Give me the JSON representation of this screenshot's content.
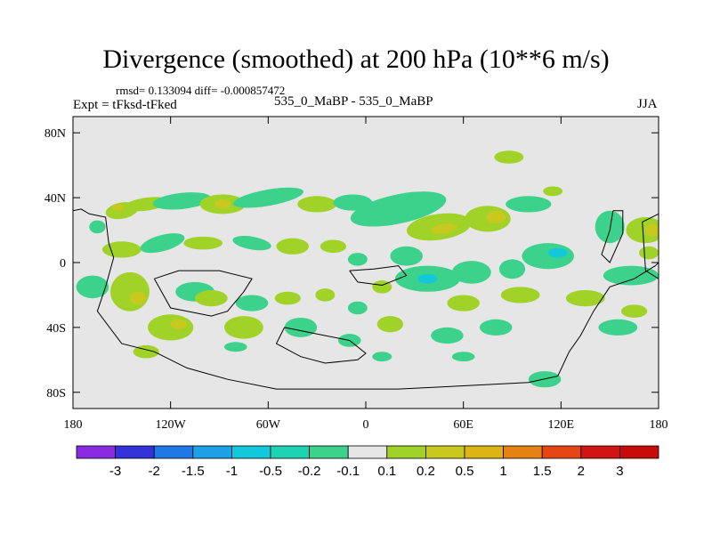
{
  "header": {
    "title": "Divergence (smoothed) at 200 hPa (10**6 m/s)",
    "stats": "rmsd= 0.133094 diff= -0.000857472",
    "expt": "Expt = tFksd-tFked",
    "case": "535_0_MaBP - 535_0_MaBP",
    "season": "JJA"
  },
  "colors": {
    "background": "#e6e6e6",
    "frame": "#000000"
  },
  "chart_data": {
    "type": "heatmap",
    "title": "Divergence (smoothed) at 200 hPa (10**6 m/s)",
    "xlim": [
      -180,
      180
    ],
    "ylim": [
      -90,
      90
    ],
    "xticks": [
      {
        "value": -180,
        "label": "180"
      },
      {
        "value": -120,
        "label": "120W"
      },
      {
        "value": -60,
        "label": "60W"
      },
      {
        "value": 0,
        "label": "0"
      },
      {
        "value": 60,
        "label": "60E"
      },
      {
        "value": 120,
        "label": "120E"
      },
      {
        "value": 180,
        "label": "180"
      }
    ],
    "yticks": [
      {
        "value": 80,
        "label": "80N"
      },
      {
        "value": 40,
        "label": "40N"
      },
      {
        "value": 0,
        "label": "0"
      },
      {
        "value": -40,
        "label": "40S"
      },
      {
        "value": -80,
        "label": "80S"
      }
    ],
    "levels": [
      "-3",
      "-2",
      "-1.5",
      "-1",
      "-0.5",
      "-0.2",
      "-0.1",
      "0.1",
      "0.2",
      "0.5",
      "1",
      "1.5",
      "2",
      "3"
    ],
    "colorbar": [
      "#8a2be2",
      "#3232d8",
      "#1e78e6",
      "#1ea0e6",
      "#14c8dc",
      "#1ed2b4",
      "#3cd28c",
      "#e6e6e6",
      "#a0d228",
      "#c8c81e",
      "#dcb414",
      "#e68214",
      "#e64614",
      "#d21414",
      "#c80a0a"
    ],
    "blobs": [
      {
        "lon": -150,
        "lat": 32,
        "rx": 10,
        "ry": 5,
        "rot": -10,
        "color": "#a0d228"
      },
      {
        "lon": -152,
        "lat": 34,
        "rx": 4,
        "ry": 2,
        "rot": 0,
        "color": "#c8c81e"
      },
      {
        "lon": -165,
        "lat": 22,
        "rx": 5,
        "ry": 4,
        "rot": 0,
        "color": "#3cd28c"
      },
      {
        "lon": -135,
        "lat": 36,
        "rx": 14,
        "ry": 4,
        "rot": -8,
        "color": "#a0d228"
      },
      {
        "lon": -113,
        "lat": 38,
        "rx": 18,
        "ry": 5,
        "rot": -6,
        "color": "#3cd28c"
      },
      {
        "lon": -88,
        "lat": 36,
        "rx": 14,
        "ry": 6,
        "rot": 0,
        "color": "#a0d228"
      },
      {
        "lon": -88,
        "lat": 36,
        "rx": 5,
        "ry": 3,
        "rot": 0,
        "color": "#c8c81e"
      },
      {
        "lon": -60,
        "lat": 40,
        "rx": 22,
        "ry": 5,
        "rot": -10,
        "color": "#3cd28c"
      },
      {
        "lon": -30,
        "lat": 36,
        "rx": 12,
        "ry": 5,
        "rot": 0,
        "color": "#a0d228"
      },
      {
        "lon": -8,
        "lat": 37,
        "rx": 12,
        "ry": 5,
        "rot": 0,
        "color": "#3cd28c"
      },
      {
        "lon": 20,
        "lat": 33,
        "rx": 30,
        "ry": 9,
        "rot": -12,
        "color": "#3cd28c"
      },
      {
        "lon": 45,
        "lat": 22,
        "rx": 20,
        "ry": 8,
        "rot": -8,
        "color": "#a0d228"
      },
      {
        "lon": 48,
        "lat": 21,
        "rx": 8,
        "ry": 3,
        "rot": -8,
        "color": "#c8c81e"
      },
      {
        "lon": 75,
        "lat": 27,
        "rx": 14,
        "ry": 8,
        "rot": 0,
        "color": "#a0d228"
      },
      {
        "lon": 80,
        "lat": 28,
        "rx": 6,
        "ry": 4,
        "rot": 0,
        "color": "#c8c81e"
      },
      {
        "lon": 100,
        "lat": 36,
        "rx": 14,
        "ry": 5,
        "rot": 0,
        "color": "#3cd28c"
      },
      {
        "lon": 88,
        "lat": 65,
        "rx": 9,
        "ry": 4,
        "rot": 0,
        "color": "#a0d228"
      },
      {
        "lon": 115,
        "lat": 44,
        "rx": 6,
        "ry": 3,
        "rot": 0,
        "color": "#a0d228"
      },
      {
        "lon": 150,
        "lat": 22,
        "rx": 9,
        "ry": 10,
        "rot": 0,
        "color": "#3cd28c"
      },
      {
        "lon": 172,
        "lat": 20,
        "rx": 12,
        "ry": 8,
        "rot": 0,
        "color": "#a0d228"
      },
      {
        "lon": 176,
        "lat": 20,
        "rx": 4,
        "ry": 4,
        "rot": 0,
        "color": "#c8c81e"
      },
      {
        "lon": -150,
        "lat": 8,
        "rx": 12,
        "ry": 5,
        "rot": 0,
        "color": "#a0d228"
      },
      {
        "lon": -125,
        "lat": 12,
        "rx": 14,
        "ry": 5,
        "rot": -15,
        "color": "#3cd28c"
      },
      {
        "lon": -100,
        "lat": 12,
        "rx": 12,
        "ry": 4,
        "rot": 0,
        "color": "#a0d228"
      },
      {
        "lon": -70,
        "lat": 12,
        "rx": 12,
        "ry": 4,
        "rot": 10,
        "color": "#3cd28c"
      },
      {
        "lon": -45,
        "lat": 10,
        "rx": 10,
        "ry": 5,
        "rot": 0,
        "color": "#a0d228"
      },
      {
        "lon": -20,
        "lat": 10,
        "rx": 8,
        "ry": 4,
        "rot": 0,
        "color": "#a0d228"
      },
      {
        "lon": -5,
        "lat": 2,
        "rx": 6,
        "ry": 4,
        "rot": 0,
        "color": "#3cd28c"
      },
      {
        "lon": 25,
        "lat": 4,
        "rx": 10,
        "ry": 6,
        "rot": 0,
        "color": "#3cd28c"
      },
      {
        "lon": 38,
        "lat": -10,
        "rx": 20,
        "ry": 8,
        "rot": 0,
        "color": "#3cd28c"
      },
      {
        "lon": 38,
        "lat": -10,
        "rx": 6,
        "ry": 3,
        "rot": 0,
        "color": "#14c8dc"
      },
      {
        "lon": 65,
        "lat": -6,
        "rx": 12,
        "ry": 7,
        "rot": 0,
        "color": "#3cd28c"
      },
      {
        "lon": 90,
        "lat": -4,
        "rx": 8,
        "ry": 6,
        "rot": 0,
        "color": "#3cd28c"
      },
      {
        "lon": 112,
        "lat": 4,
        "rx": 16,
        "ry": 8,
        "rot": 0,
        "color": "#3cd28c"
      },
      {
        "lon": 118,
        "lat": 6,
        "rx": 6,
        "ry": 3,
        "rot": 0,
        "color": "#14c8dc"
      },
      {
        "lon": 163,
        "lat": -8,
        "rx": 17,
        "ry": 6,
        "rot": 0,
        "color": "#3cd28c"
      },
      {
        "lon": 174,
        "lat": 6,
        "rx": 6,
        "ry": 4,
        "rot": 0,
        "color": "#a0d228"
      },
      {
        "lon": -168,
        "lat": -15,
        "rx": 10,
        "ry": 7,
        "rot": 0,
        "color": "#3cd28c"
      },
      {
        "lon": -145,
        "lat": -18,
        "rx": 12,
        "ry": 12,
        "rot": -30,
        "color": "#a0d228"
      },
      {
        "lon": -140,
        "lat": -22,
        "rx": 5,
        "ry": 4,
        "rot": 0,
        "color": "#c8c81e"
      },
      {
        "lon": -105,
        "lat": -18,
        "rx": 12,
        "ry": 6,
        "rot": 0,
        "color": "#3cd28c"
      },
      {
        "lon": -95,
        "lat": -22,
        "rx": 10,
        "ry": 5,
        "rot": 0,
        "color": "#a0d228"
      },
      {
        "lon": -70,
        "lat": -25,
        "rx": 10,
        "ry": 5,
        "rot": 0,
        "color": "#3cd28c"
      },
      {
        "lon": -48,
        "lat": -22,
        "rx": 8,
        "ry": 4,
        "rot": 0,
        "color": "#a0d228"
      },
      {
        "lon": -25,
        "lat": -20,
        "rx": 6,
        "ry": 4,
        "rot": 0,
        "color": "#a0d228"
      },
      {
        "lon": -5,
        "lat": -28,
        "rx": 6,
        "ry": 4,
        "rot": 0,
        "color": "#3cd28c"
      },
      {
        "lon": 10,
        "lat": -15,
        "rx": 6,
        "ry": 4,
        "rot": 0,
        "color": "#a0d228"
      },
      {
        "lon": 60,
        "lat": -25,
        "rx": 10,
        "ry": 5,
        "rot": 0,
        "color": "#a0d228"
      },
      {
        "lon": 95,
        "lat": -20,
        "rx": 12,
        "ry": 5,
        "rot": 0,
        "color": "#a0d228"
      },
      {
        "lon": 135,
        "lat": -22,
        "rx": 12,
        "ry": 5,
        "rot": 0,
        "color": "#a0d228"
      },
      {
        "lon": -120,
        "lat": -40,
        "rx": 14,
        "ry": 8,
        "rot": 0,
        "color": "#a0d228"
      },
      {
        "lon": -115,
        "lat": -38,
        "rx": 5,
        "ry": 3,
        "rot": 0,
        "color": "#c8c81e"
      },
      {
        "lon": -75,
        "lat": -40,
        "rx": 12,
        "ry": 7,
        "rot": 0,
        "color": "#a0d228"
      },
      {
        "lon": -40,
        "lat": -40,
        "rx": 10,
        "ry": 6,
        "rot": 0,
        "color": "#3cd28c"
      },
      {
        "lon": -10,
        "lat": -48,
        "rx": 7,
        "ry": 4,
        "rot": 0,
        "color": "#3cd28c"
      },
      {
        "lon": 15,
        "lat": -38,
        "rx": 8,
        "ry": 5,
        "rot": 0,
        "color": "#a0d228"
      },
      {
        "lon": 50,
        "lat": -45,
        "rx": 10,
        "ry": 5,
        "rot": 0,
        "color": "#3cd28c"
      },
      {
        "lon": 80,
        "lat": -40,
        "rx": 10,
        "ry": 5,
        "rot": 0,
        "color": "#3cd28c"
      },
      {
        "lon": 155,
        "lat": -40,
        "rx": 12,
        "ry": 5,
        "rot": 0,
        "color": "#3cd28c"
      },
      {
        "lon": 165,
        "lat": -30,
        "rx": 8,
        "ry": 4,
        "rot": 0,
        "color": "#a0d228"
      },
      {
        "lon": -135,
        "lat": -55,
        "rx": 8,
        "ry": 4,
        "rot": 0,
        "color": "#a0d228"
      },
      {
        "lon": -80,
        "lat": -52,
        "rx": 7,
        "ry": 3,
        "rot": 0,
        "color": "#3cd28c"
      },
      {
        "lon": 10,
        "lat": -58,
        "rx": 6,
        "ry": 3,
        "rot": 0,
        "color": "#3cd28c"
      },
      {
        "lon": 60,
        "lat": -58,
        "rx": 7,
        "ry": 3,
        "rot": 0,
        "color": "#3cd28c"
      },
      {
        "lon": 110,
        "lat": -72,
        "rx": 10,
        "ry": 5,
        "rot": 0,
        "color": "#3cd28c"
      }
    ],
    "coastlines": [
      [
        [
          -180,
          32
        ],
        [
          -175,
          33
        ],
        [
          -170,
          30
        ],
        [
          -160,
          28
        ],
        [
          -158,
          12
        ],
        [
          -155,
          3
        ],
        [
          -160,
          -15
        ],
        [
          -165,
          -30
        ],
        [
          -150,
          -50
        ],
        [
          -130,
          -55
        ],
        [
          -110,
          -65
        ],
        [
          -85,
          -72
        ],
        [
          -55,
          -78
        ],
        [
          -20,
          -78
        ],
        [
          20,
          -78
        ],
        [
          60,
          -76
        ],
        [
          100,
          -74
        ],
        [
          118,
          -70
        ],
        [
          125,
          -55
        ],
        [
          132,
          -45
        ],
        [
          140,
          -30
        ],
        [
          150,
          -15
        ],
        [
          165,
          -10
        ],
        [
          178,
          -2
        ],
        [
          180,
          0
        ]
      ],
      [
        [
          -130,
          -10
        ],
        [
          -120,
          -28
        ],
        [
          -95,
          -33
        ],
        [
          -85,
          -30
        ],
        [
          -75,
          -18
        ],
        [
          -70,
          -10
        ],
        [
          -90,
          -5
        ],
        [
          -115,
          -5
        ],
        [
          -130,
          -10
        ]
      ],
      [
        [
          -50,
          -40
        ],
        [
          -55,
          -50
        ],
        [
          -40,
          -58
        ],
        [
          -25,
          -62
        ],
        [
          -5,
          -60
        ],
        [
          0,
          -56
        ],
        [
          -10,
          -48
        ],
        [
          -30,
          -44
        ],
        [
          -50,
          -40
        ]
      ],
      [
        [
          -10,
          -5
        ],
        [
          -5,
          -12
        ],
        [
          10,
          -14
        ],
        [
          25,
          -8
        ],
        [
          20,
          -2
        ],
        [
          5,
          -4
        ],
        [
          -10,
          -5
        ]
      ],
      [
        [
          152,
          32
        ],
        [
          150,
          20
        ],
        [
          145,
          5
        ],
        [
          150,
          0
        ],
        [
          158,
          18
        ],
        [
          158,
          32
        ],
        [
          152,
          32
        ]
      ],
      [
        [
          170,
          25
        ],
        [
          172,
          -5
        ],
        [
          180,
          -10
        ],
        [
          180,
          30
        ],
        [
          170,
          25
        ]
      ]
    ]
  }
}
